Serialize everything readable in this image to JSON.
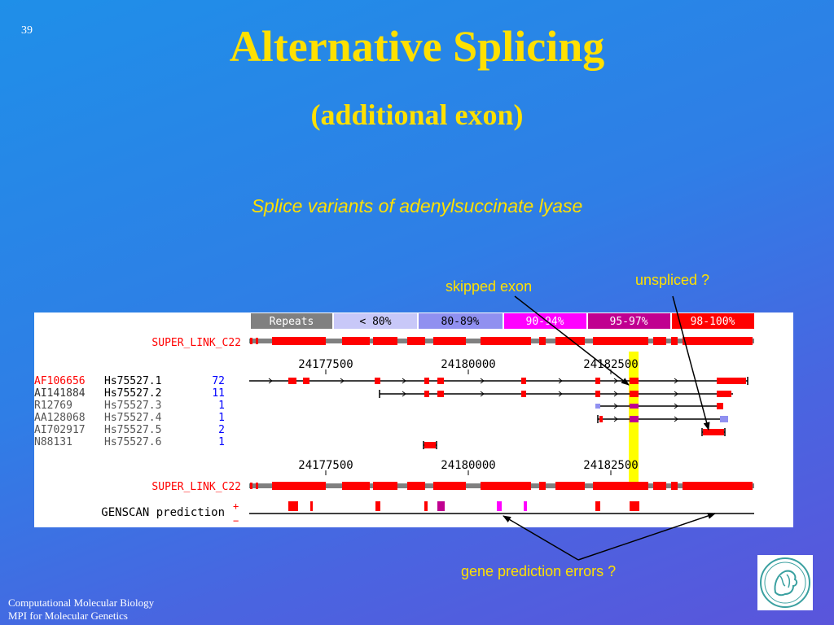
{
  "slide_number": "39",
  "title": "Alternative Splicing",
  "subtitle": "(additional exon)",
  "caption": "Splice variants of adenylsuccinate lyase",
  "annotations": {
    "skipped_exon": "skipped exon",
    "unspliced": "unspliced ?",
    "gene_prediction_errors": "gene prediction errors ?"
  },
  "footer": {
    "line1": "Computational Molecular Biology",
    "line2": "MPI for Molecular Genetics"
  },
  "legend": [
    {
      "label": "Repeats",
      "color": "#808080"
    },
    {
      "label": "< 80%",
      "color": "#c8c8f8"
    },
    {
      "label": "80-89%",
      "color": "#9090f0"
    },
    {
      "label": "90-94%",
      "color": "#ff00ff"
    },
    {
      "label": "95-97%",
      "color": "#c00090"
    },
    {
      "label": "98-100%",
      "color": "#ff0000"
    }
  ],
  "track_label": "SUPER_LINK_C22",
  "coordinates": [
    "24177500",
    "24180000",
    "24182500"
  ],
  "rows": [
    {
      "accession": "AF106656",
      "cluster": "Hs75527.1",
      "count": "72"
    },
    {
      "accession": "AI141884",
      "cluster": "Hs75527.2",
      "count": "11"
    },
    {
      "accession": "R12769",
      "cluster": "Hs75527.3",
      "count": "1"
    },
    {
      "accession": "AA128068",
      "cluster": "Hs75527.4",
      "count": "1"
    },
    {
      "accession": "AI702917",
      "cluster": "Hs75527.5",
      "count": "2"
    },
    {
      "accession": "N88131",
      "cluster": "Hs75527.6",
      "count": "1"
    }
  ],
  "genscan_label": "GENSCAN prediction",
  "strand_plus": "+",
  "strand_minus": "−",
  "colors": {
    "title": "#ffe000",
    "exon": "#ff0000",
    "highlight": "#ffff00",
    "accession_red": "#ff0000",
    "count_blue": "#0000ff"
  }
}
